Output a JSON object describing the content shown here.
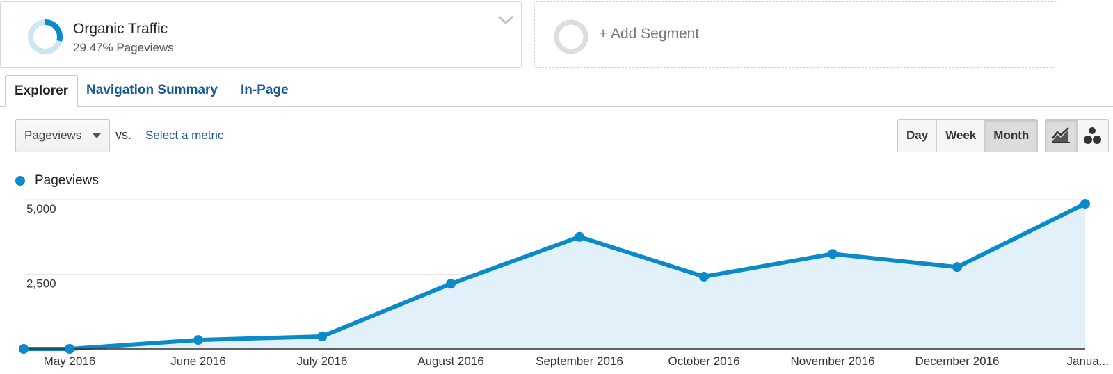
{
  "segments": {
    "active": {
      "title": "Organic Traffic",
      "subtitle": "29.47% Pageviews",
      "share": 0.2947
    },
    "add_label": "+ Add Segment"
  },
  "tabs": [
    {
      "label": "Explorer",
      "active": true
    },
    {
      "label": "Navigation Summary",
      "active": false
    },
    {
      "label": "In-Page",
      "active": false
    }
  ],
  "controls": {
    "metric": "Pageviews",
    "vs": "vs.",
    "select_metric": "Select a metric",
    "intervals": [
      {
        "label": "Day",
        "active": false
      },
      {
        "label": "Week",
        "active": false
      },
      {
        "label": "Month",
        "active": true
      }
    ],
    "chart_types": [
      {
        "icon": "line-chart-icon",
        "active": true
      },
      {
        "icon": "motion-chart-icon",
        "active": false
      }
    ]
  },
  "colors": {
    "series": "#0b8ac9",
    "area": "#e2f1f9",
    "link": "#15589c",
    "ring": "#dddddd",
    "donut_track": "#cce6f4"
  },
  "chart_data": {
    "type": "area",
    "series": [
      {
        "name": "Pageviews",
        "values": [
          0,
          0,
          300,
          420,
          2180,
          3750,
          2420,
          3180,
          2740,
          4860
        ]
      }
    ],
    "x_tick_labels": [
      "May 2016",
      "June 2016",
      "July 2016",
      "August 2016",
      "September 2016",
      "October 2016",
      "November 2016",
      "December 2016",
      "Janua..."
    ],
    "y_ticks": [
      {
        "value": 2500,
        "label": "2,500"
      },
      {
        "value": 5000,
        "label": "5,000"
      }
    ],
    "ylim": [
      0,
      5000
    ],
    "grid": true,
    "legend_position": "top-left"
  }
}
